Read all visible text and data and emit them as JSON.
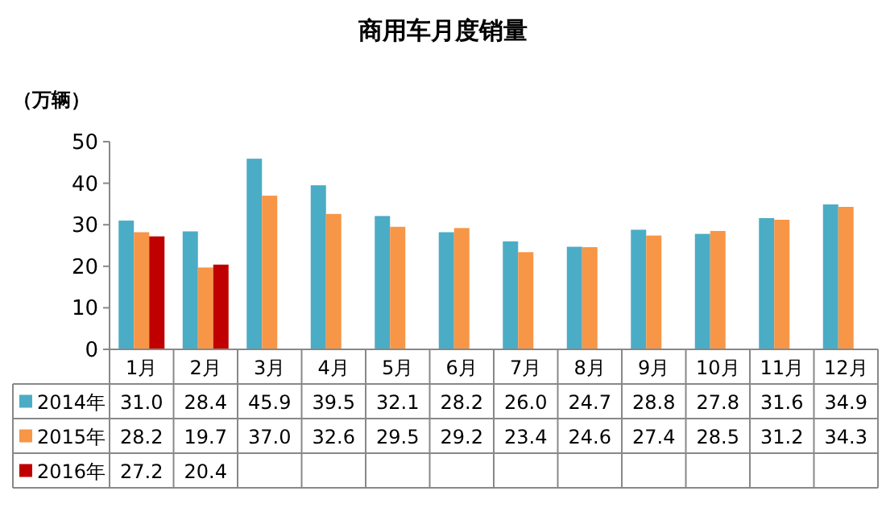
{
  "chart_data": {
    "type": "bar",
    "title": "商用车月度销量",
    "ylabel": "（万辆）",
    "categories": [
      "1月",
      "2月",
      "3月",
      "4月",
      "5月",
      "6月",
      "7月",
      "8月",
      "9月",
      "10月",
      "11月",
      "12月"
    ],
    "series": [
      {
        "name": "2014年",
        "color": "#4bacc6",
        "values": [
          31.0,
          28.4,
          45.9,
          39.5,
          32.1,
          28.2,
          26.0,
          24.7,
          28.8,
          27.8,
          31.6,
          34.9
        ],
        "value_labels": [
          "31.0",
          "28.4",
          "45.9",
          "39.5",
          "32.1",
          "28.2",
          "26.0",
          "24.7",
          "28.8",
          "27.8",
          "31.6",
          "34.9"
        ]
      },
      {
        "name": "2015年",
        "color": "#f79646",
        "values": [
          28.2,
          19.7,
          37.0,
          32.6,
          29.5,
          29.2,
          23.4,
          24.6,
          27.4,
          28.5,
          31.2,
          34.3
        ],
        "value_labels": [
          "28.2",
          "19.7",
          "37.0",
          "32.6",
          "29.5",
          "29.2",
          "23.4",
          "24.6",
          "27.4",
          "28.5",
          "31.2",
          "34.3"
        ]
      },
      {
        "name": "2016年",
        "color": "#c00000",
        "values": [
          27.2,
          20.4,
          null,
          null,
          null,
          null,
          null,
          null,
          null,
          null,
          null,
          null
        ],
        "value_labels": [
          "27.2",
          "20.4",
          null,
          null,
          null,
          null,
          null,
          null,
          null,
          null,
          null,
          null
        ]
      }
    ],
    "ylim": [
      0,
      50
    ],
    "yticks": [
      0,
      10,
      20,
      30,
      40,
      50
    ],
    "legend": "bottom",
    "grid": false
  }
}
